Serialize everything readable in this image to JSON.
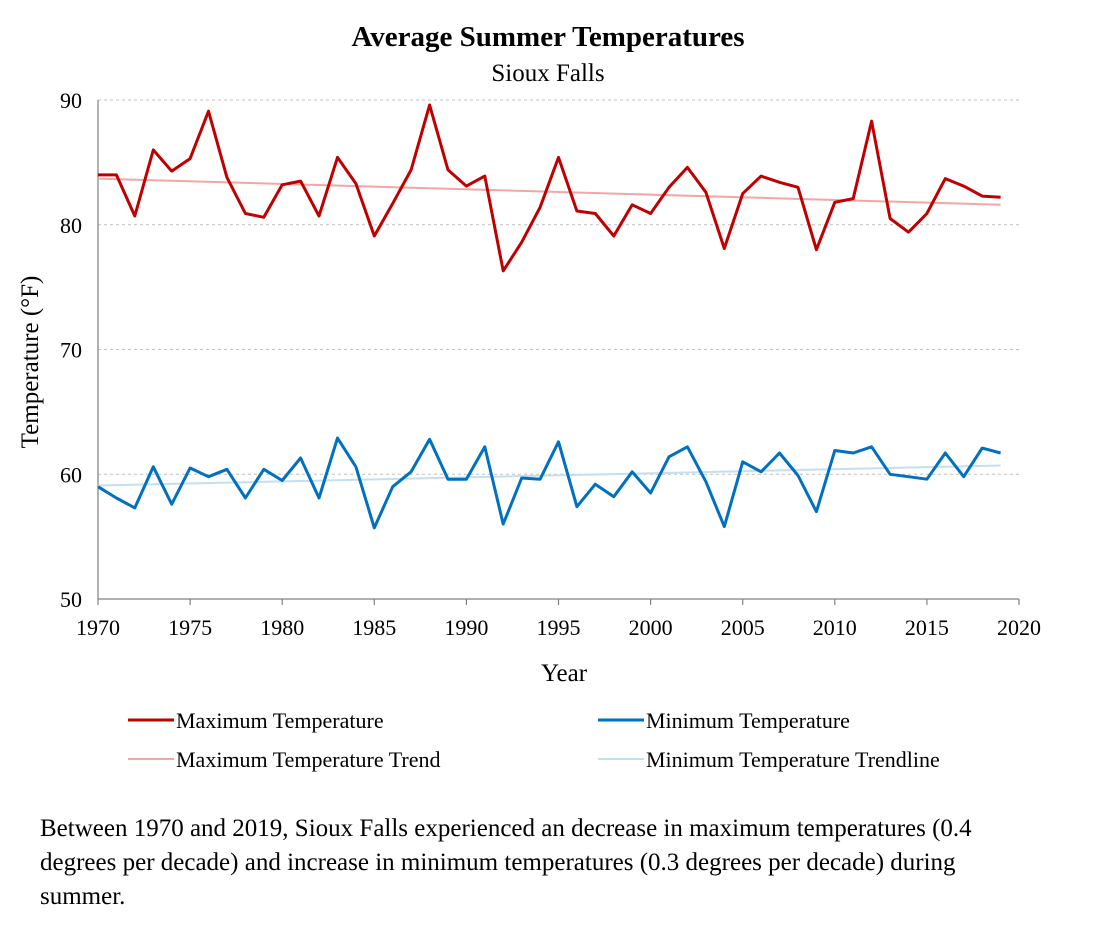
{
  "chart_data": {
    "type": "line",
    "title": "Average Summer Temperatures",
    "subtitle": "Sioux Falls",
    "xlabel": "Year",
    "ylabel": "Temperature (°F)",
    "xlim": [
      1970,
      2020
    ],
    "ylim": [
      50,
      90
    ],
    "x_ticks": [
      1970,
      1975,
      1980,
      1985,
      1990,
      1995,
      2000,
      2005,
      2010,
      2015,
      2020
    ],
    "y_ticks": [
      50,
      60,
      70,
      80,
      90
    ],
    "grid": "horizontal dashed",
    "legend_placement": "bottom",
    "x": [
      1970,
      1971,
      1972,
      1973,
      1974,
      1975,
      1976,
      1977,
      1978,
      1979,
      1980,
      1981,
      1982,
      1983,
      1984,
      1985,
      1986,
      1987,
      1988,
      1989,
      1990,
      1991,
      1992,
      1993,
      1994,
      1995,
      1996,
      1997,
      1998,
      1999,
      2000,
      2001,
      2002,
      2003,
      2004,
      2005,
      2006,
      2007,
      2008,
      2009,
      2010,
      2011,
      2012,
      2013,
      2014,
      2015,
      2016,
      2017,
      2018,
      2019
    ],
    "series": [
      {
        "name": "Maximum Temperature",
        "color": "#c00000",
        "kind": "data",
        "values": [
          84.0,
          84.0,
          80.7,
          86.0,
          84.3,
          85.3,
          89.1,
          83.8,
          80.9,
          80.6,
          83.2,
          83.5,
          80.7,
          85.4,
          83.3,
          79.1,
          81.7,
          84.4,
          89.6,
          84.4,
          83.1,
          83.9,
          76.3,
          78.6,
          81.4,
          85.4,
          81.1,
          80.9,
          79.1,
          81.6,
          80.9,
          83.0,
          84.6,
          82.6,
          78.1,
          82.5,
          83.9,
          83.4,
          83.0,
          78.0,
          81.8,
          82.1,
          88.3,
          80.5,
          79.4,
          80.9,
          83.7,
          83.1,
          82.3,
          82.2
        ]
      },
      {
        "name": "Minimum Temperature",
        "color": "#0070c0",
        "kind": "data",
        "values": [
          59.0,
          58.1,
          57.3,
          60.6,
          57.6,
          60.5,
          59.8,
          60.4,
          58.1,
          60.4,
          59.5,
          61.3,
          58.1,
          62.9,
          60.6,
          55.7,
          59.0,
          60.2,
          62.8,
          59.6,
          59.6,
          62.2,
          56.0,
          59.7,
          59.6,
          62.6,
          57.4,
          59.2,
          58.2,
          60.2,
          58.5,
          61.4,
          62.2,
          59.4,
          55.8,
          61.0,
          60.2,
          61.7,
          59.9,
          57.0,
          61.9,
          61.7,
          62.2,
          60.0,
          59.8,
          59.6,
          61.7,
          59.8,
          62.1,
          61.7
        ]
      },
      {
        "name": "Maximum Temperature Trend",
        "color": "#f4a6a6",
        "kind": "trend",
        "x": [
          1970,
          2019
        ],
        "values": [
          83.7,
          81.6
        ]
      },
      {
        "name": "Minimum Temperature Trendline",
        "color": "#c5dff2",
        "kind": "trend",
        "x": [
          1970,
          2019
        ],
        "values": [
          59.1,
          60.7
        ]
      }
    ]
  },
  "caption": "Between 1970 and 2019, Sioux Falls experienced an decrease in maximum temperatures (0.4 degrees per decade) and increase in minimum temperatures (0.3 degrees per decade) during summer."
}
